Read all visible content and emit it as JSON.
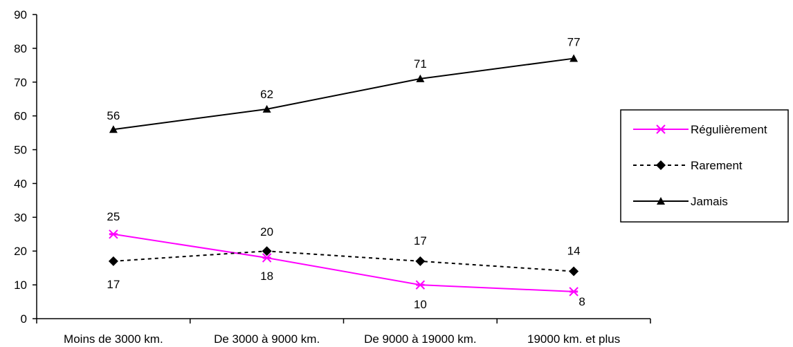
{
  "chart_data": {
    "type": "line",
    "title": "",
    "xlabel": "",
    "ylabel": "",
    "ylim": [
      0,
      90
    ],
    "yticks": [
      0,
      10,
      20,
      30,
      40,
      50,
      60,
      70,
      80,
      90
    ],
    "grid": false,
    "legend_position": "right",
    "categories": [
      "Moins de 3000 km.",
      "De 3000 à 9000 km.",
      "De 9000 à 19000 km.",
      "19000 km. et plus"
    ],
    "series": [
      {
        "name": "Régulièrement",
        "values": [
          25,
          18,
          10,
          8
        ],
        "color": "#ff00ff",
        "marker": "asterisk",
        "line_style": "solid"
      },
      {
        "name": "Rarement",
        "values": [
          17,
          20,
          17,
          14
        ],
        "color": "#000000",
        "marker": "diamond",
        "line_style": "dashed"
      },
      {
        "name": "Jamais",
        "values": [
          56,
          62,
          71,
          77
        ],
        "color": "#000000",
        "marker": "triangle",
        "line_style": "solid"
      }
    ]
  }
}
